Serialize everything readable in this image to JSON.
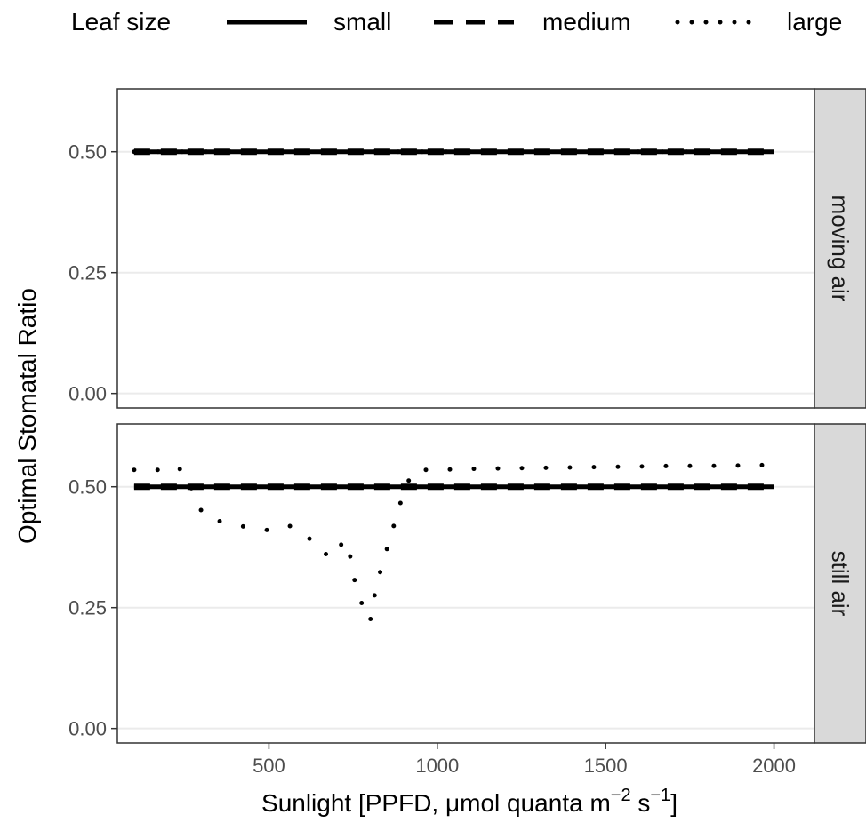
{
  "chart_data": {
    "type": "line",
    "xlabel": {
      "base": "Sunlight [PPFD, ",
      "mu": "μ",
      "mol": "mol quanta m",
      "exp1": "−2",
      "s": " s",
      "exp2": "−1",
      "close": "]"
    },
    "ylabel": "Optimal Stomatal Ratio",
    "legend": {
      "title": "Leaf size",
      "position": "top",
      "entries": [
        {
          "label": "small",
          "linetype": "solid"
        },
        {
          "label": "medium",
          "linetype": "dashed"
        },
        {
          "label": "large",
          "linetype": "dotted"
        }
      ]
    },
    "xlim": [
      50,
      2120
    ],
    "ylim": [
      -0.03,
      0.63
    ],
    "xticks": [
      500,
      1000,
      1500,
      2000
    ],
    "xtick_labels": [
      "500",
      "1000",
      "1500",
      "2000"
    ],
    "yticks": [
      0.0,
      0.25,
      0.5
    ],
    "ytick_labels": [
      "0.00",
      "0.25",
      "0.50"
    ],
    "grid": true,
    "colors": {
      "line": "#000000",
      "grid": "#ebebeb",
      "strip": "#d9d9d9",
      "panel_border": "#333333"
    },
    "panels": [
      {
        "strip": "moving air",
        "series": [
          {
            "name": "small",
            "x": [
              100,
              2000
            ],
            "y": [
              0.5,
              0.5
            ]
          },
          {
            "name": "medium",
            "x": [
              100,
              2000
            ],
            "y": [
              0.5,
              0.5
            ]
          },
          {
            "name": "large",
            "x": [
              100,
              2000
            ],
            "y": [
              0.5,
              0.5
            ]
          }
        ]
      },
      {
        "strip": "still air",
        "series": [
          {
            "name": "small",
            "x": [
              100,
              2000
            ],
            "y": [
              0.5,
              0.5
            ]
          },
          {
            "name": "medium",
            "x": [
              100,
              2000
            ],
            "y": [
              0.5,
              0.5
            ]
          },
          {
            "name": "large",
            "x": [
              100,
              150,
              210,
              255,
              275,
              310,
              380,
              440,
              500,
              560,
              600,
              640,
              670,
              700,
              720,
              735,
              755,
              775,
              800,
              820,
              840,
              860,
              880,
              900,
              930,
              1000,
              1100,
              1200,
              1300,
              1400,
              1500,
              1600,
              1700,
              1800,
              1900,
              2000
            ],
            "y": [
              0.535,
              0.53,
              0.545,
              0.53,
              0.485,
              0.435,
              0.425,
              0.415,
              0.41,
              0.42,
              0.395,
              0.39,
              0.36,
              0.355,
              0.39,
              0.38,
              0.305,
              0.26,
              0.22,
              0.3,
              0.345,
              0.395,
              0.44,
              0.49,
              0.535,
              0.535,
              0.537,
              0.538,
              0.539,
              0.54,
              0.541,
              0.542,
              0.543,
              0.543,
              0.544,
              0.545
            ]
          }
        ]
      }
    ]
  }
}
